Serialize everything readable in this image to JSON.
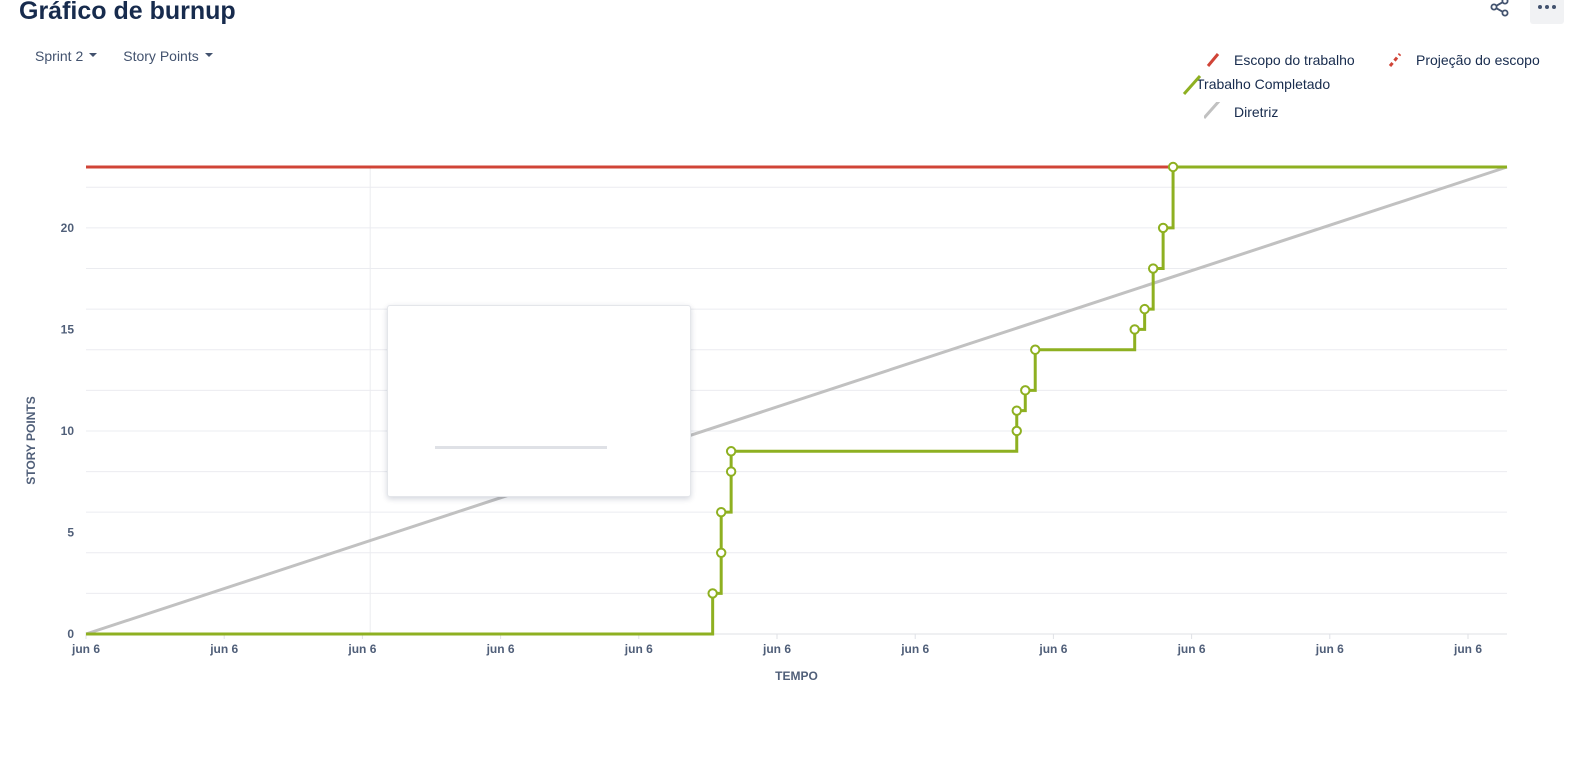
{
  "header": {
    "title": "Gráfico de burnup"
  },
  "icons": {
    "share": "share-icon",
    "more": "more-icon"
  },
  "filters": [
    {
      "label": "Sprint 2"
    },
    {
      "label": "Story Points"
    }
  ],
  "legend": [
    {
      "label": "Escopo do trabalho",
      "color": "#d04437",
      "style": "solid"
    },
    {
      "label": "Projeção do escopo",
      "color": "#d04437",
      "style": "dashed"
    },
    {
      "label": "Trabalho Completado",
      "color": "#8eb021",
      "style": "solid"
    },
    {
      "label": "Diretriz",
      "color": "#c1c1c1",
      "style": "solid"
    }
  ],
  "chart_data": {
    "type": "line",
    "xlabel": "TEMPO",
    "ylabel": "STORY POINTS",
    "x_tick_labels": [
      "jun 6",
      "jun 6",
      "jun 6",
      "jun 6",
      "jun 6",
      "jun 6",
      "jun 6",
      "jun 6",
      "jun 6",
      "jun 6",
      "jun 6"
    ],
    "y_ticks": [
      0,
      5,
      10,
      15,
      20
    ],
    "ylim": [
      0,
      23
    ],
    "xlim": [
      0,
      1
    ],
    "grid": true,
    "legend_position": "top-right",
    "series": [
      {
        "name": "Escopo do trabalho",
        "color": "#d04437",
        "step": false,
        "points": [
          [
            0,
            23
          ],
          [
            0.773,
            23
          ]
        ]
      },
      {
        "name": "Projeção do escopo",
        "color": "#d04437",
        "dashed": true,
        "step": false,
        "points": []
      },
      {
        "name": "Trabalho Completado",
        "color": "#8eb021",
        "step": true,
        "markers": true,
        "points": [
          [
            0.441,
            2
          ],
          [
            0.447,
            4
          ],
          [
            0.447,
            6
          ],
          [
            0.454,
            8
          ],
          [
            0.454,
            9
          ],
          [
            0.655,
            10
          ],
          [
            0.655,
            11
          ],
          [
            0.661,
            12
          ],
          [
            0.668,
            14
          ],
          [
            0.738,
            15
          ],
          [
            0.745,
            16
          ],
          [
            0.751,
            18
          ],
          [
            0.758,
            20
          ],
          [
            0.765,
            23
          ]
        ],
        "start": [
          0,
          0
        ],
        "end": [
          1,
          23
        ]
      },
      {
        "name": "Diretriz",
        "color": "#c1c1c1",
        "step": false,
        "points": [
          [
            0,
            0
          ],
          [
            1,
            23
          ]
        ]
      }
    ]
  }
}
